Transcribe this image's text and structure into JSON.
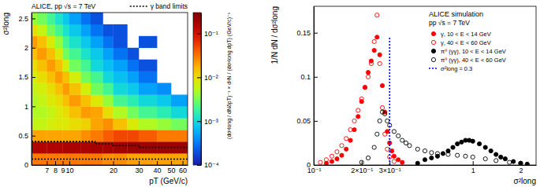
{
  "chart_data": [
    {
      "type": "heatmap",
      "title": "ALICE, pp √s = 7 TeV",
      "x_label": "pT (GeV/c)",
      "y_label": "σ²long",
      "log": "x",
      "xlim": [
        5.5,
        65
      ],
      "xticks": [
        7,
        8,
        9,
        10,
        20,
        30,
        40,
        50,
        60
      ],
      "ylim": [
        0,
        2.6
      ],
      "yticks": [
        0,
        0.5,
        1,
        1.5,
        2,
        2.5
      ],
      "legend": "top-right",
      "x_bins": [
        5.5,
        6,
        7,
        8,
        9,
        10,
        12,
        14,
        17,
        20,
        25,
        30,
        40,
        50,
        65
      ],
      "y_bins": [
        0,
        0.2,
        0.4,
        0.6,
        0.8,
        1.0,
        1.2,
        1.4,
        1.6,
        1.8,
        2.0,
        2.2,
        2.4,
        2.6
      ],
      "cells": [
        [
          0.03,
          0.03,
          0.03,
          0.03,
          0.03,
          0.03,
          0.03,
          0.03,
          0.025,
          0.025,
          0.02,
          0.02,
          0.02,
          0.02
        ],
        [
          0.15,
          0.15,
          0.16,
          0.16,
          0.17,
          0.17,
          0.17,
          0.18,
          0.18,
          0.19,
          0.2,
          0.2,
          0.2,
          0.2
        ],
        [
          0.02,
          0.02,
          0.02,
          0.02,
          0.02,
          0.02,
          0.025,
          0.03,
          0.04,
          0.05,
          0.05,
          0.04,
          0.03,
          0.03
        ],
        [
          0.006,
          0.006,
          0.007,
          0.008,
          0.008,
          0.01,
          0.012,
          0.02,
          0.025,
          0.015,
          0.008,
          0.005,
          0.004,
          0.003
        ],
        [
          0.005,
          0.005,
          0.006,
          0.008,
          0.01,
          0.015,
          0.022,
          0.02,
          0.01,
          0.005,
          0.003,
          0.002,
          0.0015,
          0.001
        ],
        [
          0.005,
          0.006,
          0.008,
          0.01,
          0.015,
          0.022,
          0.015,
          0.008,
          0.004,
          0.002,
          0.0015,
          0.001,
          0.0008,
          0.0005
        ],
        [
          0.006,
          0.007,
          0.01,
          0.015,
          0.022,
          0.015,
          0.007,
          0.003,
          0.002,
          0.001,
          0.0008,
          0.0005,
          0.0004,
          null
        ],
        [
          0.007,
          0.01,
          0.015,
          0.022,
          0.015,
          0.007,
          0.003,
          0.002,
          0.001,
          0.0007,
          0.0005,
          0.0003,
          null,
          null
        ],
        [
          0.01,
          0.015,
          0.022,
          0.015,
          0.007,
          0.003,
          0.002,
          0.001,
          0.0007,
          0.0005,
          0.0003,
          0.0002,
          null,
          null
        ],
        [
          0.015,
          0.022,
          0.015,
          0.008,
          0.003,
          0.002,
          0.0012,
          0.0008,
          0.0005,
          0.0003,
          0.0002,
          null,
          null,
          null
        ],
        [
          0.022,
          0.015,
          0.008,
          0.004,
          0.002,
          0.0012,
          0.0008,
          0.0005,
          0.0003,
          0.0002,
          null,
          0.0002,
          null,
          null
        ],
        [
          0.01,
          0.006,
          0.003,
          0.002,
          0.0012,
          0.0008,
          0.0005,
          0.0003,
          0.0002,
          0.0002,
          null,
          null,
          null,
          null
        ],
        [
          0.004,
          0.003,
          0.002,
          0.0012,
          0.0008,
          0.0005,
          0.0003,
          0.0002,
          null,
          null,
          null,
          null,
          null,
          null
        ]
      ],
      "colorbar": {
        "label": "(dσ²long / dNδpT)⁻¹ × d²N / (dσ²long dpT) (GeV/c)⁻¹",
        "log": true,
        "lim": [
          0.0001,
          0.3
        ],
        "ticks": [
          {
            "value": 0.0001,
            "label": "10⁻⁴"
          },
          {
            "value": 0.001,
            "label": "10⁻³"
          },
          {
            "value": 0.01,
            "label": "10⁻²"
          },
          {
            "value": 0.1,
            "label": "10⁻¹"
          }
        ]
      },
      "series": [
        {
          "name": "γ band limits",
          "type": "line",
          "line_style": "dotted",
          "color": "#000000",
          "x": [
            5.5,
            15,
            15,
            20,
            20,
            30,
            30,
            65,
            65,
            5.5,
            65
          ],
          "values": [
            0.4,
            0.4,
            0.36,
            0.36,
            0.33,
            0.33,
            0.3,
            0.3,
            null,
            0.1,
            0.1
          ]
        }
      ]
    },
    {
      "type": "scatter",
      "title": "ALICE simulation",
      "subtitle": "pp √s = 7 TeV",
      "x_label": "σ²long",
      "y_label": "1/N dN / dσ²long",
      "log": "x",
      "xlim": [
        0.1,
        2.5
      ],
      "xticks": [
        {
          "value": 0.1,
          "label": "10⁻¹"
        },
        {
          "value": 0.2,
          "label": "2×10⁻¹"
        },
        {
          "value": 0.3,
          "label": "3×10⁻¹"
        },
        1,
        2
      ],
      "ylim": [
        0,
        0.18
      ],
      "yticks": [
        0,
        0.05,
        0.1,
        0.15
      ],
      "legend": "top-right",
      "series": [
        {
          "name": "γ, 10 < E < 14 GeV",
          "marker": "circle",
          "color": "#ff0000",
          "x": [
            0.12,
            0.13,
            0.14,
            0.15,
            0.16,
            0.17,
            0.18,
            0.19,
            0.2,
            0.21,
            0.22,
            0.23,
            0.24,
            0.25,
            0.26,
            0.27,
            0.28,
            0.29,
            0.3,
            0.31,
            0.32,
            0.34,
            0.36
          ],
          "values": [
            0.002,
            0.004,
            0.007,
            0.011,
            0.018,
            0.028,
            0.04,
            0.055,
            0.072,
            0.088,
            0.105,
            0.118,
            0.13,
            0.145,
            0.125,
            0.09,
            0.06,
            0.038,
            0.025,
            0.016,
            0.01,
            0.006,
            0.003
          ]
        },
        {
          "name": "γ, 40 < E < 60 GeV",
          "marker": "open_circle",
          "color": "#ff0000",
          "x": [
            0.11,
            0.12,
            0.13,
            0.14,
            0.15,
            0.16,
            0.17,
            0.18,
            0.19,
            0.2,
            0.21,
            0.22,
            0.23,
            0.24,
            0.25,
            0.26,
            0.27,
            0.28,
            0.29,
            0.3,
            0.32
          ],
          "values": [
            0.003,
            0.006,
            0.01,
            0.015,
            0.022,
            0.03,
            0.04,
            0.05,
            0.062,
            0.075,
            0.088,
            0.1,
            0.115,
            0.14,
            0.17,
            0.115,
            0.065,
            0.035,
            0.018,
            0.009,
            0.004
          ]
        },
        {
          "name": "π⁰ (γγ), 10 < E < 14 GeV",
          "marker": "circle",
          "color": "#000000",
          "x": [
            0.45,
            0.5,
            0.55,
            0.6,
            0.65,
            0.7,
            0.75,
            0.8,
            0.85,
            0.9,
            0.95,
            1.0,
            1.1,
            1.2,
            1.3,
            1.4,
            1.5,
            1.6,
            1.8,
            2.0,
            2.2
          ],
          "values": [
            0.002,
            0.006,
            0.008,
            0.01,
            0.013,
            0.016,
            0.02,
            0.024,
            0.026,
            0.028,
            0.028,
            0.027,
            0.024,
            0.02,
            0.016,
            0.012,
            0.009,
            0.007,
            0.004,
            0.002,
            0.001
          ]
        },
        {
          "name": "π⁰ (γγ), 40 < E < 60 GeV",
          "marker": "open_circle",
          "color": "#000000",
          "x": [
            0.2,
            0.22,
            0.24,
            0.25,
            0.26,
            0.27,
            0.28,
            0.29,
            0.3,
            0.32,
            0.34,
            0.36,
            0.38,
            0.4,
            0.45,
            0.5,
            0.55,
            0.6,
            0.7,
            0.8,
            0.9,
            1.0,
            1.2,
            1.4,
            1.7,
            2.0
          ],
          "values": [
            0.003,
            0.008,
            0.02,
            0.035,
            0.05,
            0.06,
            0.058,
            0.05,
            0.045,
            0.038,
            0.033,
            0.028,
            0.025,
            0.022,
            0.018,
            0.016,
            0.014,
            0.013,
            0.012,
            0.011,
            0.01,
            0.009,
            0.007,
            0.005,
            0.003,
            0.002
          ]
        },
        {
          "name": "σ²long = 0.3",
          "type": "line",
          "line_style": "dotted",
          "color": "#0000ff",
          "x": [
            0.3,
            0.3
          ],
          "values": [
            0,
            0.145
          ]
        }
      ]
    }
  ]
}
